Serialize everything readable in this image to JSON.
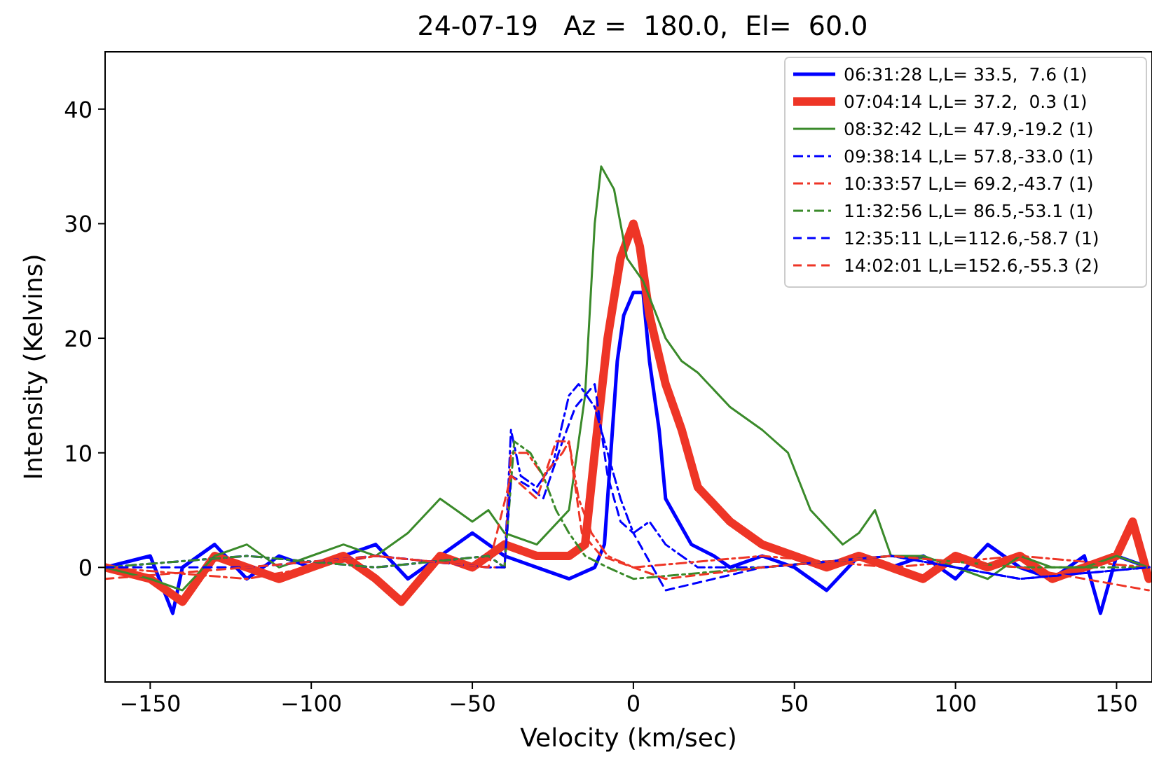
{
  "chart_data": {
    "type": "line",
    "title": "24-07-19   Az =  180.0,  El=  60.0",
    "xlabel": "Velocity (km/sec)",
    "ylabel": "Intensity (Kelvins)",
    "xlim": [
      -164,
      161
    ],
    "ylim": [
      -10,
      45
    ],
    "xticks": [
      -150,
      -100,
      -50,
      0,
      50,
      100,
      150
    ],
    "yticks": [
      0,
      10,
      20,
      30,
      40
    ],
    "grid": false,
    "legend": "top right",
    "marker": "none",
    "series": [
      {
        "name": "06:31:28 L,L= 33.5,  7.6 (1)",
        "color": "#0000ff",
        "line_style": "solid",
        "x": [
          -164,
          -150,
          -143,
          -140,
          -130,
          -120,
          -110,
          -100,
          -90,
          -80,
          -70,
          -60,
          -50,
          -40,
          -30,
          -20,
          -12,
          -9,
          -7,
          -5,
          -3,
          0,
          3,
          5,
          8,
          10,
          14,
          18,
          25,
          30,
          40,
          50,
          60,
          70,
          80,
          90,
          100,
          110,
          120,
          130,
          140,
          145,
          150,
          160
        ],
        "values": [
          0,
          1,
          -4,
          0,
          2,
          -1,
          1,
          0,
          1,
          2,
          -1,
          1,
          3,
          1,
          0,
          -1,
          0,
          2,
          10,
          18,
          22,
          24,
          24,
          18,
          12,
          6,
          4,
          2,
          1,
          0,
          1,
          0,
          -2,
          1,
          0,
          1,
          -1,
          2,
          0,
          -1,
          1,
          -4,
          1,
          0
        ]
      },
      {
        "name": "07:04:14 L,L= 37.2,  0.3 (1)",
        "color": "#ee3526",
        "line_style": "solid",
        "x": [
          -164,
          -150,
          -140,
          -130,
          -120,
          -110,
          -100,
          -90,
          -80,
          -72,
          -60,
          -50,
          -40,
          -30,
          -20,
          -15,
          -12,
          -8,
          -4,
          0,
          2,
          5,
          10,
          15,
          20,
          30,
          40,
          50,
          60,
          70,
          80,
          90,
          100,
          110,
          120,
          130,
          140,
          150,
          155,
          160
        ],
        "values": [
          0,
          -1,
          -3,
          1,
          0,
          -1,
          0,
          1,
          -1,
          -3,
          1,
          0,
          2,
          1,
          1,
          2,
          10,
          20,
          27,
          30,
          28,
          22,
          16,
          12,
          7,
          4,
          2,
          1,
          0,
          1,
          0,
          -1,
          1,
          0,
          1,
          -1,
          0,
          1,
          4,
          -1
        ]
      },
      {
        "name": "08:32:42 L,L= 47.9,-19.2 (1)",
        "color": "#3a8a2a",
        "line_style": "solid",
        "x": [
          -164,
          -150,
          -140,
          -130,
          -120,
          -110,
          -100,
          -90,
          -80,
          -70,
          -60,
          -55,
          -50,
          -45,
          -40,
          -30,
          -20,
          -15,
          -12,
          -10,
          -6,
          -2,
          3,
          10,
          15,
          20,
          30,
          40,
          48,
          55,
          65,
          70,
          75,
          80,
          90,
          100,
          110,
          120,
          130,
          140,
          150,
          160
        ],
        "values": [
          0,
          -1,
          -2,
          1,
          2,
          0,
          1,
          2,
          1,
          3,
          6,
          5,
          4,
          5,
          3,
          2,
          5,
          15,
          30,
          35,
          33,
          27,
          25,
          20,
          18,
          17,
          14,
          12,
          10,
          5,
          2,
          3,
          5,
          1,
          1,
          0,
          -1,
          1,
          0,
          0,
          1,
          0
        ]
      },
      {
        "name": "09:38:14 L,L= 57.8,-33.0 (1)",
        "color": "#0000ff",
        "line_style": "dashdot",
        "x": [
          -164,
          -120,
          -80,
          -45,
          -40,
          -38,
          -35,
          -30,
          -25,
          -20,
          -17,
          -12,
          -8,
          -4,
          0,
          5,
          10,
          15,
          20,
          40,
          80,
          120,
          160
        ],
        "values": [
          0,
          1,
          0,
          1,
          0,
          12,
          8,
          7,
          9,
          15,
          16,
          14,
          10,
          6,
          3,
          4,
          2,
          1,
          0,
          0,
          1,
          -1,
          0
        ]
      },
      {
        "name": "10:33:57 L,L= 69.2,-43.7 (1)",
        "color": "#ee3526",
        "line_style": "dashdot",
        "x": [
          -164,
          -120,
          -80,
          -45,
          -40,
          -38,
          -33,
          -28,
          -22,
          -20,
          -17,
          -13,
          -8,
          0,
          40,
          80,
          120,
          160
        ],
        "values": [
          0,
          -1,
          1,
          0,
          0,
          10,
          10,
          8,
          10,
          11,
          6,
          3,
          1,
          0,
          1,
          0,
          1,
          0
        ]
      },
      {
        "name": "11:32:56 L,L= 86.5,-53.1 (1)",
        "color": "#3a8a2a",
        "line_style": "dashdot",
        "x": [
          -164,
          -120,
          -80,
          -45,
          -40,
          -37,
          -32,
          -28,
          -24,
          -20,
          -15,
          -8,
          0,
          40,
          80,
          120,
          160
        ],
        "values": [
          0,
          1,
          0,
          1,
          0,
          11,
          10,
          8,
          5,
          3,
          1,
          0,
          -1,
          0,
          1,
          0,
          0
        ]
      },
      {
        "name": "12:35:11 L,L=112.6,-58.7 (1)",
        "color": "#0000ff",
        "line_style": "dashed",
        "x": [
          -164,
          -120,
          -80,
          -45,
          -40,
          -38,
          -32,
          -28,
          -22,
          -18,
          -12,
          -8,
          -4,
          0,
          10,
          40,
          80,
          120,
          160
        ],
        "values": [
          0,
          0,
          1,
          0,
          0,
          8,
          7,
          6,
          11,
          14,
          16,
          8,
          4,
          3,
          -2,
          0,
          1,
          -1,
          0
        ]
      },
      {
        "name": "14:02:01 L,L=152.6,-55.3 (2)",
        "color": "#ee3526",
        "line_style": "dashed",
        "x": [
          -164,
          -120,
          -80,
          -45,
          -38,
          -30,
          -24,
          -20,
          -16,
          -10,
          0,
          10,
          40,
          80,
          120,
          160
        ],
        "values": [
          -1,
          0,
          1,
          0,
          8,
          6,
          11,
          11,
          3,
          1,
          0,
          -1,
          0,
          1,
          0,
          -2
        ]
      }
    ]
  }
}
